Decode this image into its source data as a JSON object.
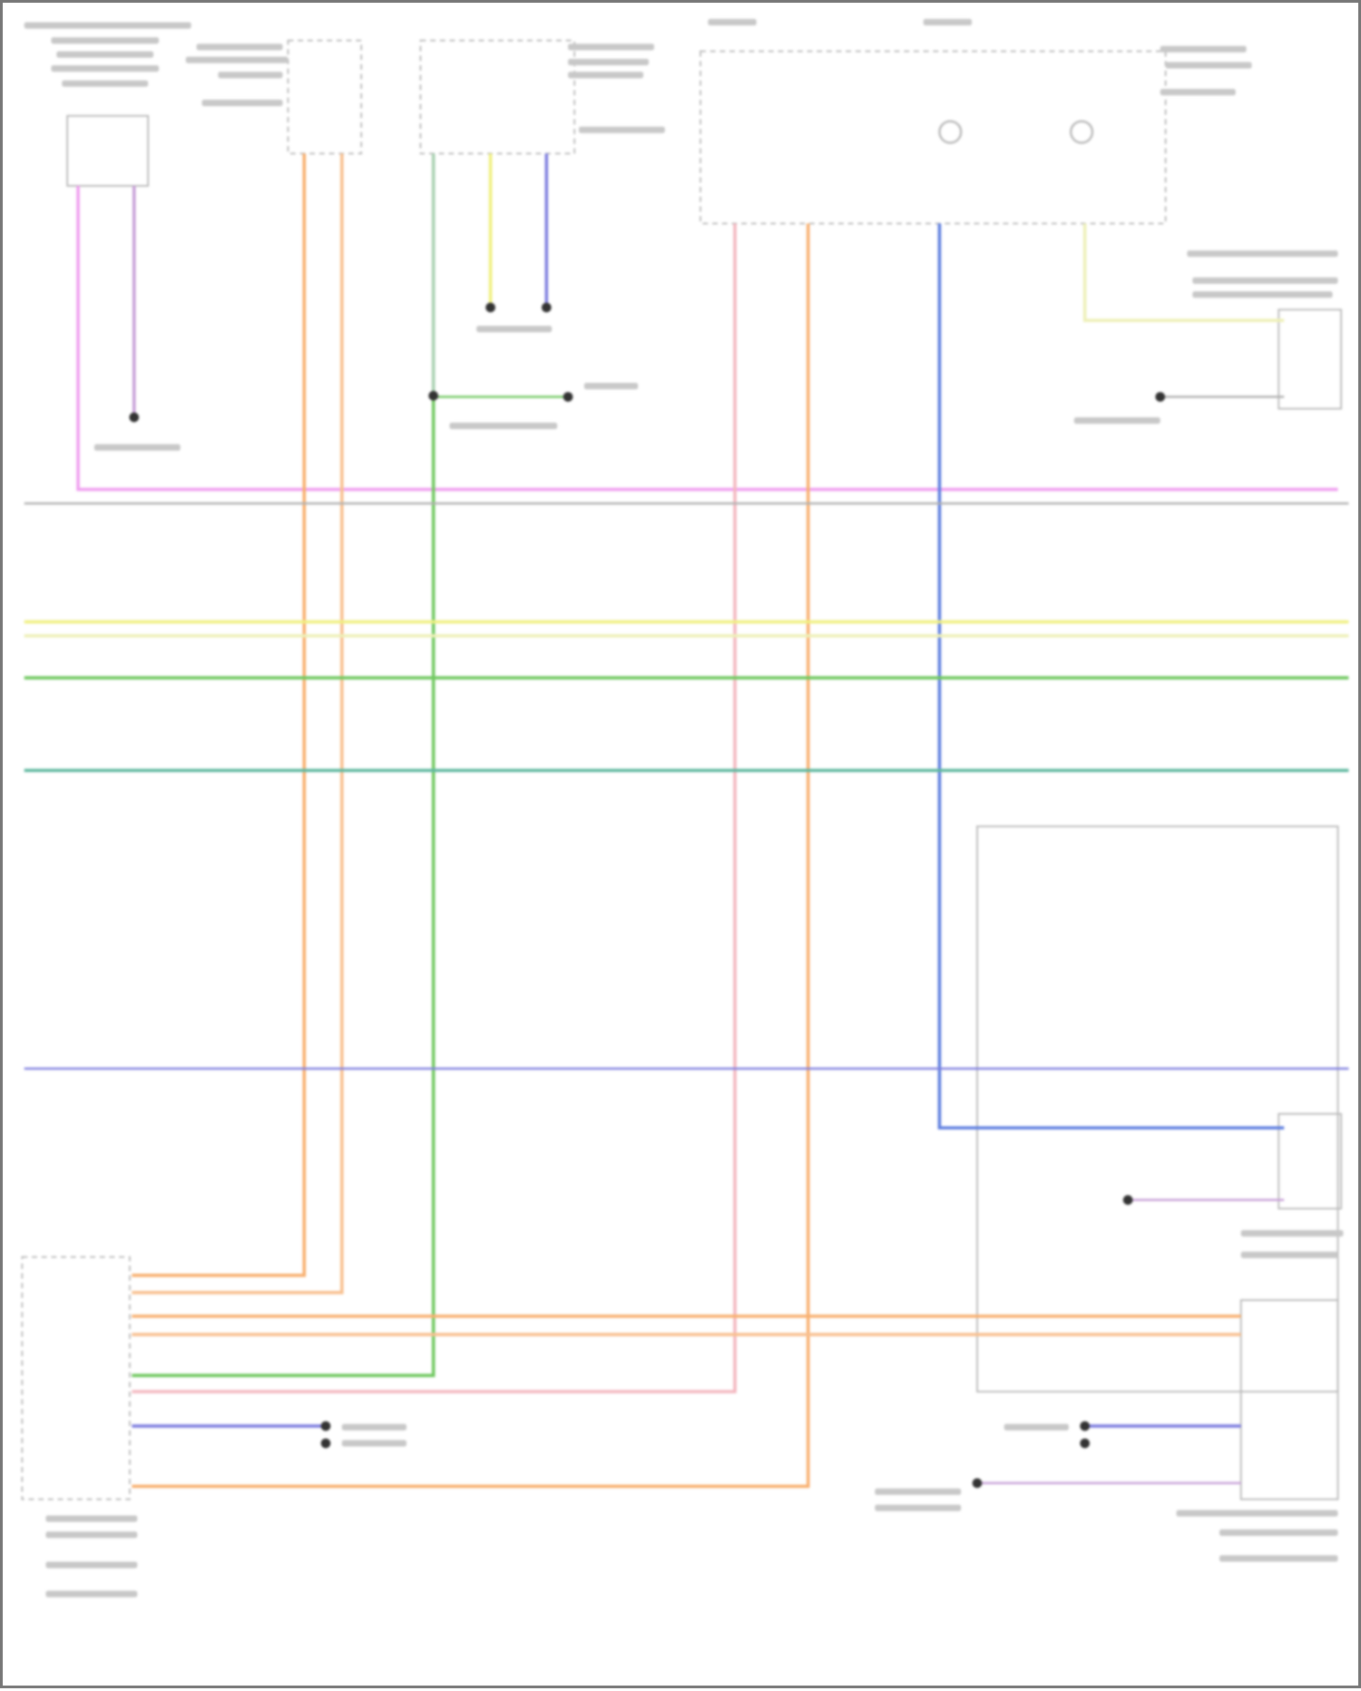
{
  "diagram": {
    "wire_colors": {
      "pink": "#f0a0f0",
      "violet": "#c8a0d8",
      "orange": "#f8b070",
      "orange_light": "#f8c090",
      "green": "#70c860",
      "green_gray": "#a8d0b0",
      "yellow": "#f0f080",
      "yellow_light": "#eef0b8",
      "purple": "#8080e0",
      "blue": "#6080e0",
      "pink_light": "#f4b8c0",
      "teal": "#60b8a0",
      "gray": "#b0b0b0"
    },
    "outline_color": "#b8b8b8",
    "text_legibility": "illegible"
  }
}
